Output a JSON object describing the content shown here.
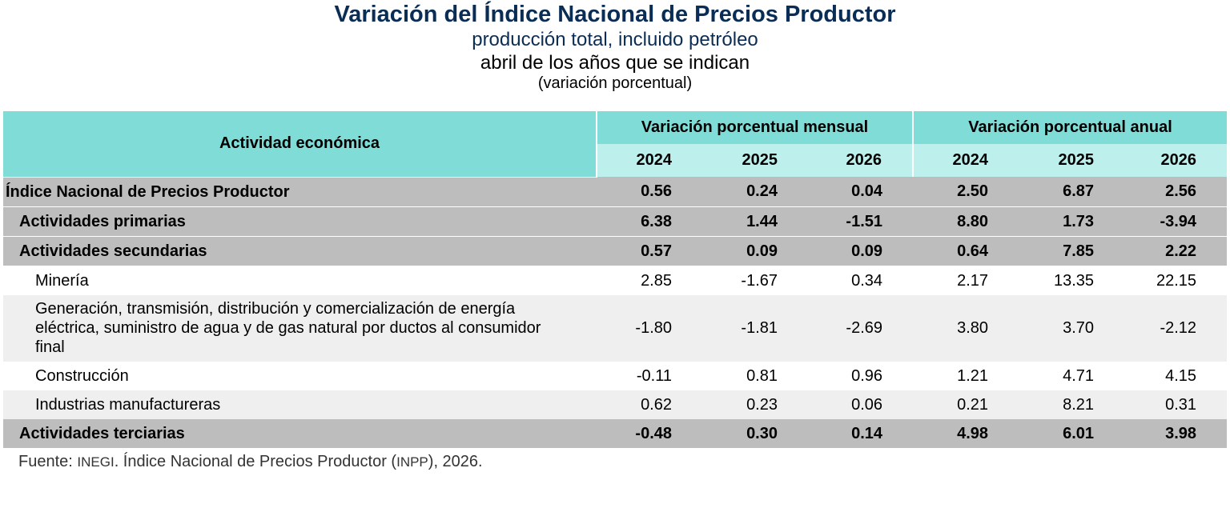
{
  "title": "Variación del Índice Nacional de Precios Productor",
  "subtitle1": "producción total, incluido petróleo",
  "subtitle2": "abril de los años que se indican",
  "subtitle3": "(variación porcentual)",
  "table": {
    "col_activity": "Actividad económica",
    "group_monthly": "Variación porcentual mensual",
    "group_annual": "Variación porcentual anual",
    "years": [
      "2024",
      "2025",
      "2026",
      "2024",
      "2025",
      "2026"
    ],
    "rows": [
      {
        "label": "Índice Nacional de Precios Productor",
        "values": [
          "0.56",
          "0.24",
          "0.04",
          "2.50",
          "6.87",
          "2.56"
        ]
      },
      {
        "label": "Actividades primarias",
        "values": [
          "6.38",
          "1.44",
          "-1.51",
          "8.80",
          "1.73",
          "-3.94"
        ]
      },
      {
        "label": "Actividades secundarias",
        "values": [
          "0.57",
          "0.09",
          "0.09",
          "0.64",
          "7.85",
          "2.22"
        ]
      },
      {
        "label": "Minería",
        "values": [
          "2.85",
          "-1.67",
          "0.34",
          "2.17",
          "13.35",
          "22.15"
        ]
      },
      {
        "label": "Generación, transmisión, distribución y comercialización de energía eléctrica, suministro de agua y de gas natural por ductos al consumidor final",
        "values": [
          "-1.80",
          "-1.81",
          "-2.69",
          "3.80",
          "3.70",
          "-2.12"
        ]
      },
      {
        "label": "Construcción",
        "values": [
          "-0.11",
          "0.81",
          "0.96",
          "1.21",
          "4.71",
          "4.15"
        ]
      },
      {
        "label": "Industrias manufactureras",
        "values": [
          "0.62",
          "0.23",
          "0.06",
          "0.21",
          "8.21",
          "0.31"
        ]
      },
      {
        "label": "Actividades terciarias",
        "values": [
          "-0.48",
          "0.30",
          "0.14",
          "4.98",
          "6.01",
          "3.98"
        ]
      }
    ]
  },
  "source": {
    "prefix": "Fuente: ",
    "org": "INEGI",
    "middle": ". Índice Nacional de Precios Productor (",
    "abbr": "INPP",
    "suffix": "), 2026."
  }
}
